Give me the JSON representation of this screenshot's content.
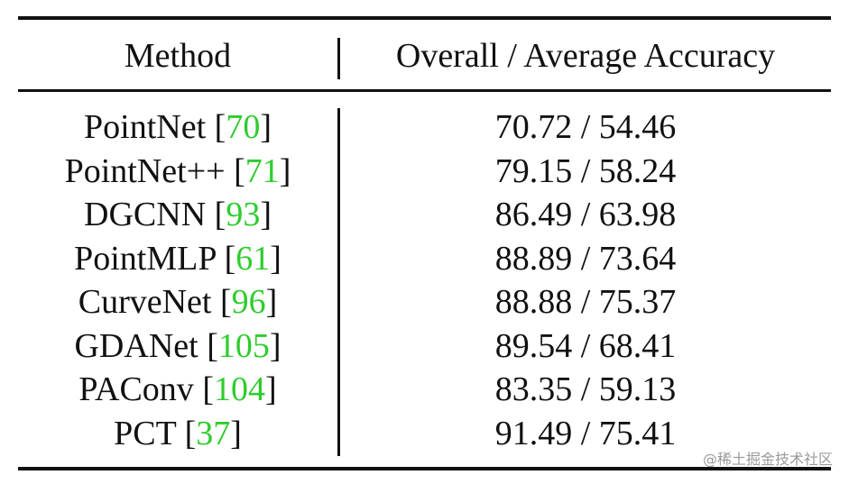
{
  "table": {
    "header": [
      "Method",
      "Overall / Average Accuracy"
    ],
    "citation_brackets": [
      "[",
      "]"
    ],
    "rows": [
      {
        "method": "PointNet",
        "citation": "70",
        "accuracy": "70.72 / 54.46"
      },
      {
        "method": "PointNet++",
        "citation": "71",
        "accuracy": "79.15 / 58.24"
      },
      {
        "method": "DGCNN",
        "citation": "93",
        "accuracy": "86.49 / 63.98"
      },
      {
        "method": "PointMLP",
        "citation": "61",
        "accuracy": "88.89 / 73.64"
      },
      {
        "method": "CurveNet",
        "citation": "96",
        "accuracy": "88.88 / 75.37"
      },
      {
        "method": "GDANet",
        "citation": "105",
        "accuracy": "89.54 / 68.41"
      },
      {
        "method": "PAConv",
        "citation": "104",
        "accuracy": "83.35 / 59.13"
      },
      {
        "method": "PCT",
        "citation": "37",
        "accuracy": "91.49 / 75.41"
      }
    ]
  },
  "watermark": "@稀土掘金技术社区"
}
